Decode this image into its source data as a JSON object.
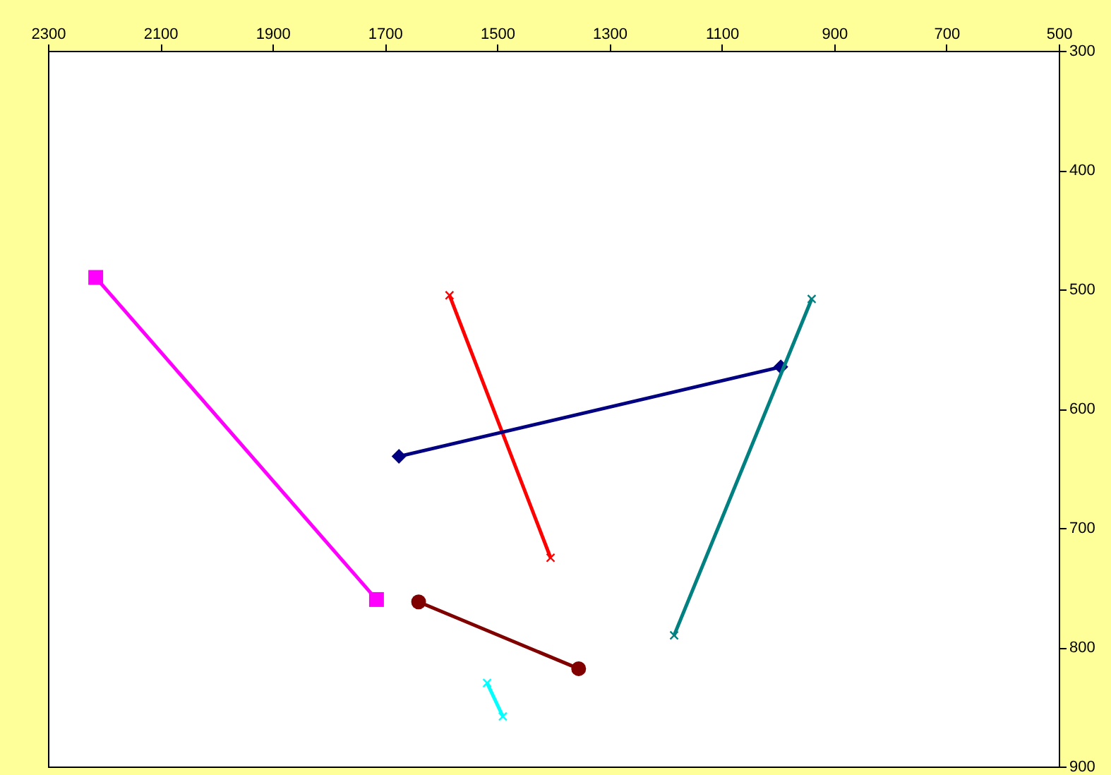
{
  "chart_data": {
    "type": "line",
    "xlim": [
      2300,
      500
    ],
    "xticks": [
      2300,
      2100,
      1900,
      1700,
      1500,
      1300,
      1100,
      900,
      700,
      500
    ],
    "ylim": [
      900,
      300
    ],
    "yticks": [
      300,
      400,
      500,
      600,
      700,
      800,
      900
    ],
    "grid": false,
    "series": [
      {
        "color": "#ff00ff",
        "marker": "square",
        "x": [
          2215,
          1715
        ],
        "values": [
          490,
          760
        ]
      },
      {
        "color": "#ff0000",
        "marker": "cross",
        "x": [
          1585,
          1405
        ],
        "values": [
          505,
          725
        ]
      },
      {
        "color": "#000080",
        "marker": "diamond",
        "x": [
          1675,
          995
        ],
        "values": [
          640,
          565
        ]
      },
      {
        "color": "#008080",
        "marker": "cross",
        "x": [
          940,
          1185
        ],
        "values": [
          508,
          790
        ]
      },
      {
        "color": "#800000",
        "marker": "circle",
        "x": [
          1640,
          1355
        ],
        "values": [
          762,
          818
        ]
      },
      {
        "color": "#00ffff",
        "marker": "cross",
        "x": [
          1518,
          1490
        ],
        "values": [
          830,
          858
        ]
      }
    ]
  }
}
